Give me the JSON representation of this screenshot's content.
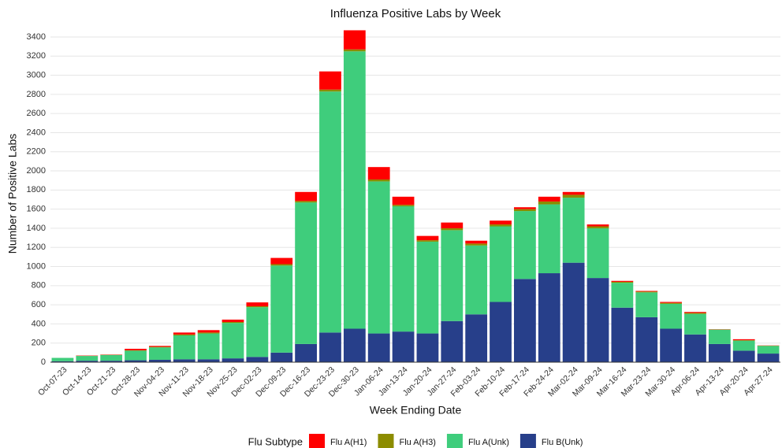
{
  "chart_data": {
    "type": "stacked_bar",
    "title": "Influenza Positive Labs by Week",
    "x_label": "Week Ending Date",
    "y_label": "Number of Positive Labs",
    "legend_title": "Flu Subtype",
    "categories": [
      "Oct-07-23",
      "Oct-14-23",
      "Oct-21-23",
      "Oct-28-23",
      "Nov-04-23",
      "Nov-11-23",
      "Nov-18-23",
      "Nov-25-23",
      "Dec-02-23",
      "Dec-09-23",
      "Dec-16-23",
      "Dec-23-23",
      "Dec-30-23",
      "Jan-06-24",
      "Jan-13-24",
      "Jan-20-24",
      "Jan-27-24",
      "Feb-03-24",
      "Feb-10-24",
      "Feb-17-24",
      "Feb-24-24",
      "Mar-02-24",
      "Mar-09-24",
      "Mar-16-24",
      "Mar-23-24",
      "Mar-30-24",
      "Apr-06-24",
      "Apr-13-24",
      "Apr-20-24",
      "Apr-27-24"
    ],
    "series": [
      {
        "name": "Flu A(H1)",
        "color": "#ff0000",
        "values": [
          0,
          3,
          3,
          15,
          10,
          20,
          25,
          25,
          40,
          65,
          95,
          190,
          200,
          130,
          85,
          45,
          60,
          30,
          40,
          20,
          50,
          30,
          20,
          10,
          7,
          10,
          10,
          2,
          10,
          2
        ]
      },
      {
        "name": "Flu A(H3)",
        "color": "#8c8c00",
        "values": [
          0,
          2,
          2,
          5,
          5,
          10,
          10,
          10,
          10,
          15,
          15,
          20,
          20,
          20,
          15,
          15,
          20,
          20,
          20,
          20,
          30,
          30,
          20,
          10,
          8,
          10,
          10,
          3,
          5,
          3
        ]
      },
      {
        "name": "Flu A(Unk)",
        "color": "#3fcd7c",
        "values": [
          35,
          50,
          60,
          100,
          130,
          250,
          270,
          370,
          520,
          910,
          1480,
          2520,
          2900,
          1590,
          1310,
          960,
          950,
          720,
          790,
          710,
          720,
          680,
          520,
          260,
          260,
          260,
          215,
          150,
          105,
          80
        ]
      },
      {
        "name": "Flu B(Unk)",
        "color": "#273f8a",
        "values": [
          10,
          15,
          15,
          20,
          25,
          30,
          30,
          40,
          55,
          100,
          190,
          310,
          350,
          300,
          320,
          300,
          430,
          500,
          630,
          870,
          930,
          1040,
          880,
          570,
          470,
          350,
          290,
          190,
          120,
          90
        ]
      }
    ],
    "ylim": [
      0,
      3515
    ],
    "yticks": [
      0,
      200,
      400,
      600,
      800,
      1000,
      1200,
      1400,
      1600,
      1800,
      2000,
      2200,
      2400,
      2600,
      2800,
      3000,
      3200,
      3400
    ],
    "grid": true
  }
}
